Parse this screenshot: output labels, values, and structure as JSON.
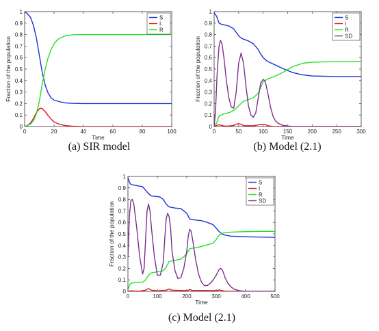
{
  "colors": {
    "S": "#1f2fd6",
    "I": "#e0141c",
    "R": "#22e02a",
    "SD": "#7b2f8f"
  },
  "chart_data": [
    {
      "type": "line",
      "caption": "(a) SIR model",
      "xlabel": "Time",
      "ylabel": "Fraction of the population",
      "xlim": [
        0,
        100
      ],
      "ylim": [
        0,
        1
      ],
      "xticks": [
        "0",
        "20",
        "40",
        "60",
        "80",
        "100"
      ],
      "yticks": [
        "0",
        "0.1",
        "0.2",
        "0.3",
        "0.4",
        "0.5",
        "0.6",
        "0.7",
        "0.8",
        "0.9",
        "1"
      ],
      "legend": "top-right",
      "series": [
        {
          "name": "S",
          "x": [
            0,
            2,
            4,
            6,
            8,
            10,
            12,
            14,
            16,
            18,
            20,
            24,
            28,
            32,
            40,
            60,
            100
          ],
          "y": [
            1,
            0.98,
            0.95,
            0.88,
            0.77,
            0.62,
            0.47,
            0.36,
            0.29,
            0.25,
            0.23,
            0.215,
            0.205,
            0.202,
            0.2,
            0.2,
            0.2
          ]
        },
        {
          "name": "I",
          "x": [
            0,
            2,
            4,
            6,
            8,
            10,
            11,
            12,
            14,
            16,
            18,
            20,
            24,
            28,
            32,
            40,
            100
          ],
          "y": [
            0,
            0.01,
            0.03,
            0.07,
            0.12,
            0.155,
            0.16,
            0.155,
            0.13,
            0.095,
            0.065,
            0.04,
            0.018,
            0.008,
            0.003,
            0,
            0
          ]
        },
        {
          "name": "R",
          "x": [
            0,
            2,
            4,
            6,
            8,
            10,
            12,
            14,
            16,
            18,
            20,
            22,
            24,
            28,
            32,
            36,
            40,
            60,
            100
          ],
          "y": [
            0,
            0.01,
            0.02,
            0.05,
            0.11,
            0.22,
            0.37,
            0.5,
            0.6,
            0.67,
            0.72,
            0.75,
            0.77,
            0.79,
            0.797,
            0.8,
            0.8,
            0.8,
            0.8
          ]
        }
      ]
    },
    {
      "type": "line",
      "caption": "(b) Model (2.1)",
      "xlabel": "Time",
      "ylabel": "Fraction of the population",
      "xlim": [
        0,
        300
      ],
      "ylim": [
        0,
        1
      ],
      "xticks": [
        "0",
        "50",
        "100",
        "150",
        "200",
        "250",
        "300"
      ],
      "yticks": [
        "0",
        "0.1",
        "0.2",
        "0.3",
        "0.4",
        "0.5",
        "0.6",
        "0.7",
        "0.8",
        "0.9",
        "1"
      ],
      "legend": "top-right",
      "series": [
        {
          "name": "S",
          "x": [
            0,
            5,
            10,
            15,
            20,
            30,
            40,
            45,
            50,
            55,
            60,
            70,
            80,
            90,
            95,
            100,
            105,
            110,
            120,
            140,
            160,
            180,
            200,
            250,
            300
          ],
          "y": [
            0.99,
            0.96,
            0.9,
            0.89,
            0.885,
            0.875,
            0.85,
            0.82,
            0.79,
            0.77,
            0.76,
            0.745,
            0.72,
            0.67,
            0.63,
            0.6,
            0.58,
            0.565,
            0.545,
            0.505,
            0.47,
            0.45,
            0.44,
            0.435,
            0.435
          ]
        },
        {
          "name": "I",
          "x": [
            0,
            5,
            10,
            15,
            20,
            30,
            40,
            45,
            50,
            55,
            60,
            80,
            95,
            100,
            105,
            110,
            120,
            300
          ],
          "y": [
            0,
            0.01,
            0.015,
            0.01,
            0.005,
            0.004,
            0.01,
            0.02,
            0.025,
            0.02,
            0.008,
            0.006,
            0.018,
            0.02,
            0.015,
            0.006,
            0,
            0
          ]
        },
        {
          "name": "R",
          "x": [
            0,
            5,
            10,
            20,
            30,
            40,
            45,
            50,
            55,
            60,
            70,
            80,
            90,
            95,
            100,
            110,
            120,
            140,
            160,
            180,
            200,
            250,
            300
          ],
          "y": [
            0.01,
            0.03,
            0.09,
            0.11,
            0.12,
            0.14,
            0.16,
            0.18,
            0.2,
            0.22,
            0.235,
            0.25,
            0.29,
            0.34,
            0.39,
            0.415,
            0.43,
            0.47,
            0.52,
            0.55,
            0.56,
            0.565,
            0.565
          ]
        },
        {
          "name": "SD",
          "x": [
            0,
            3,
            6,
            10,
            13,
            16,
            20,
            25,
            30,
            35,
            40,
            45,
            50,
            55,
            60,
            65,
            70,
            75,
            80,
            85,
            90,
            95,
            100,
            103,
            106,
            110,
            115,
            120,
            125,
            130,
            140,
            150,
            160,
            300
          ],
          "y": [
            0,
            0.15,
            0.45,
            0.7,
            0.75,
            0.72,
            0.6,
            0.4,
            0.25,
            0.17,
            0.16,
            0.3,
            0.55,
            0.64,
            0.55,
            0.35,
            0.18,
            0.1,
            0.08,
            0.12,
            0.25,
            0.38,
            0.41,
            0.4,
            0.36,
            0.28,
            0.17,
            0.09,
            0.05,
            0.03,
            0.01,
            0.005,
            0,
            0
          ]
        }
      ]
    },
    {
      "type": "line",
      "caption": "(c) Model (2.1)",
      "xlabel": "Time",
      "ylabel": "Fraction of the population",
      "xlim": [
        0,
        500
      ],
      "ylim": [
        0,
        1
      ],
      "xticks": [
        "0",
        "100",
        "200",
        "300",
        "400",
        "500"
      ],
      "yticks": [
        "0",
        "0.1",
        "0.2",
        "0.3",
        "0.4",
        "0.5",
        "0.6",
        "0.7",
        "0.8",
        "0.9",
        "1"
      ],
      "legend": "top-right",
      "series": [
        {
          "name": "S",
          "x": [
            0,
            5,
            10,
            20,
            30,
            50,
            60,
            70,
            80,
            100,
            110,
            120,
            130,
            140,
            160,
            180,
            190,
            200,
            210,
            230,
            250,
            270,
            290,
            300,
            310,
            320,
            330,
            350,
            400,
            450,
            500
          ],
          "y": [
            0.99,
            0.95,
            0.93,
            0.925,
            0.92,
            0.91,
            0.88,
            0.85,
            0.83,
            0.825,
            0.82,
            0.8,
            0.76,
            0.735,
            0.725,
            0.72,
            0.7,
            0.68,
            0.63,
            0.62,
            0.615,
            0.6,
            0.58,
            0.55,
            0.52,
            0.5,
            0.49,
            0.48,
            0.475,
            0.472,
            0.47
          ]
        },
        {
          "name": "I",
          "x": [
            0,
            10,
            20,
            40,
            60,
            70,
            80,
            100,
            130,
            140,
            150,
            200,
            210,
            220,
            300,
            310,
            320,
            330,
            500
          ],
          "y": [
            0,
            0.005,
            0.003,
            0.002,
            0.01,
            0.025,
            0.01,
            0.004,
            0.01,
            0.02,
            0.01,
            0.006,
            0.015,
            0.008,
            0.006,
            0.012,
            0.006,
            0.002,
            0
          ]
        },
        {
          "name": "R",
          "x": [
            0,
            5,
            10,
            20,
            50,
            60,
            70,
            80,
            100,
            120,
            130,
            140,
            160,
            180,
            190,
            200,
            210,
            230,
            250,
            290,
            300,
            310,
            320,
            330,
            350,
            400,
            450,
            500
          ],
          "y": [
            0.01,
            0.05,
            0.07,
            0.075,
            0.08,
            0.1,
            0.14,
            0.16,
            0.17,
            0.18,
            0.21,
            0.26,
            0.27,
            0.28,
            0.3,
            0.33,
            0.37,
            0.38,
            0.39,
            0.42,
            0.45,
            0.49,
            0.505,
            0.51,
            0.515,
            0.52,
            0.522,
            0.522
          ]
        },
        {
          "name": "SD",
          "x": [
            0,
            5,
            10,
            15,
            20,
            30,
            40,
            50,
            55,
            60,
            65,
            70,
            75,
            80,
            90,
            100,
            110,
            120,
            125,
            130,
            135,
            140,
            145,
            150,
            160,
            170,
            180,
            190,
            200,
            205,
            210,
            215,
            220,
            230,
            240,
            250,
            260,
            270,
            280,
            290,
            300,
            310,
            315,
            320,
            325,
            330,
            340,
            350,
            360,
            380,
            400,
            500
          ],
          "y": [
            0.3,
            0.65,
            0.79,
            0.8,
            0.76,
            0.55,
            0.3,
            0.15,
            0.2,
            0.45,
            0.7,
            0.76,
            0.7,
            0.55,
            0.3,
            0.14,
            0.14,
            0.25,
            0.45,
            0.63,
            0.68,
            0.65,
            0.55,
            0.35,
            0.18,
            0.11,
            0.12,
            0.2,
            0.35,
            0.48,
            0.54,
            0.52,
            0.45,
            0.28,
            0.15,
            0.08,
            0.05,
            0.05,
            0.07,
            0.1,
            0.14,
            0.19,
            0.2,
            0.19,
            0.16,
            0.12,
            0.07,
            0.04,
            0.02,
            0.005,
            0,
            0
          ]
        }
      ]
    }
  ]
}
